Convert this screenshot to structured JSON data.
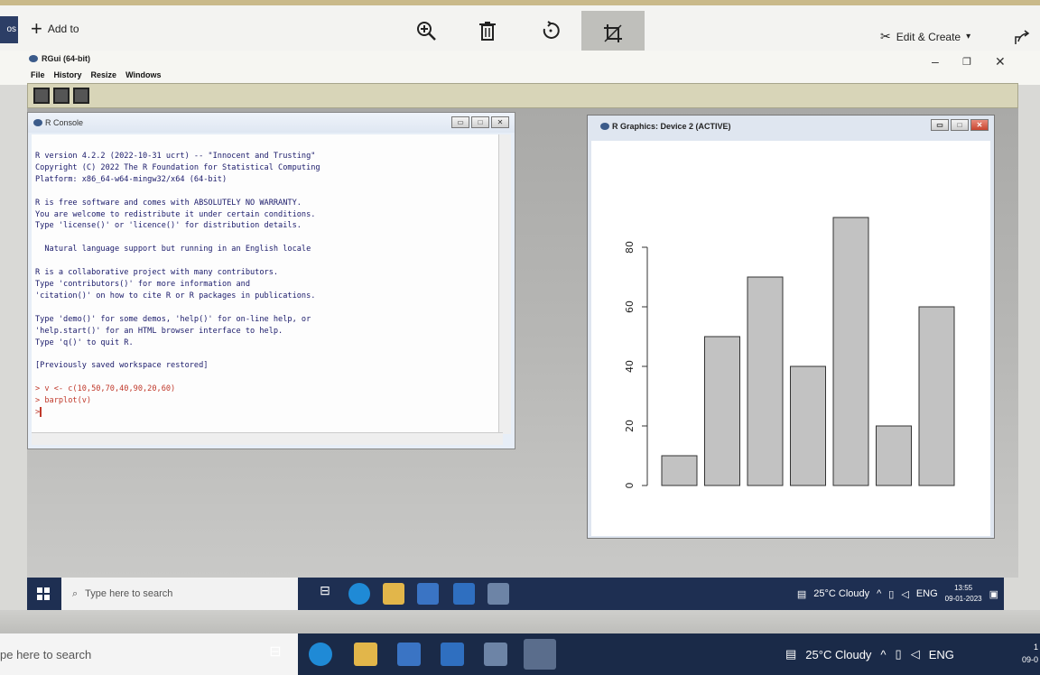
{
  "photos": {
    "left_stub": "os",
    "add_to_label": "Add to",
    "edit_create_label": "Edit & Create"
  },
  "rgui": {
    "title": "RGui (64-bit)",
    "menu": [
      "File",
      "History",
      "Resize",
      "Windows"
    ]
  },
  "console": {
    "title": "R Console",
    "lines": [
      "R version 4.2.2 (2022-10-31 ucrt) -- \"Innocent and Trusting\"",
      "Copyright (C) 2022 The R Foundation for Statistical Computing",
      "Platform: x86_64-w64-mingw32/x64 (64-bit)",
      "",
      "R is free software and comes with ABSOLUTELY NO WARRANTY.",
      "You are welcome to redistribute it under certain conditions.",
      "Type 'license()' or 'licence()' for distribution details.",
      "",
      "  Natural language support but running in an English locale",
      "",
      "R is a collaborative project with many contributors.",
      "Type 'contributors()' for more information and",
      "'citation()' on how to cite R or R packages in publications.",
      "",
      "Type 'demo()' for some demos, 'help()' for on-line help, or",
      "'help.start()' for an HTML browser interface to help.",
      "Type 'q()' to quit R.",
      "",
      "[Previously saved workspace restored]",
      ""
    ],
    "commands": [
      "> v <- c(10,50,70,40,90,20,60)",
      "> barplot(v)",
      ">"
    ]
  },
  "graphics": {
    "title": "R Graphics: Device 2 (ACTIVE)"
  },
  "chart_data": {
    "type": "bar",
    "values": [
      10,
      50,
      70,
      40,
      90,
      20,
      60
    ],
    "y_ticks": [
      "0",
      "20",
      "40",
      "60",
      "80"
    ],
    "ylim": [
      0,
      90
    ],
    "bar_fill": "#c2c2c2",
    "bar_stroke": "#333333",
    "grid": false
  },
  "taskbar_inner": {
    "search_placeholder": "Type here to search",
    "weather": "25°C  Cloudy",
    "lang": "ENG",
    "time": "13:55",
    "date": "09-01-2023"
  },
  "taskbar_outer": {
    "search_placeholder": "pe here to search",
    "weather": "25°C  Cloudy",
    "lang": "ENG",
    "edge_time": "1",
    "edge_date": "09-0"
  }
}
